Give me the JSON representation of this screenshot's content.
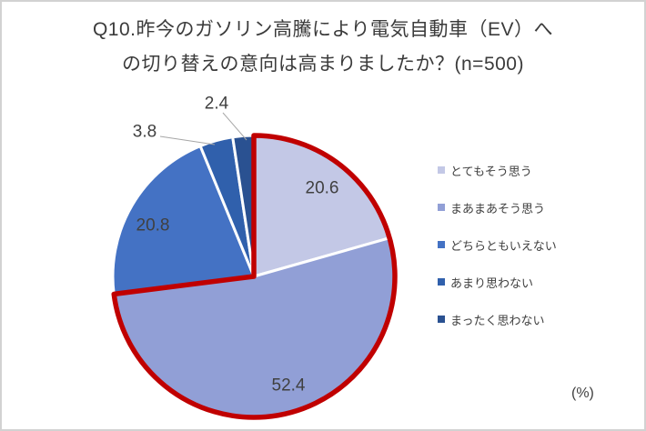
{
  "title": {
    "line1": "Q10.昨今のガソリン高騰により電気自動車（EV）へ",
    "line2": "の切り替えの意向は高まりましたか？(n=500)"
  },
  "unit_label": "(%)",
  "chart_data": {
    "type": "pie",
    "title": "Q10.昨今のガソリン高騰により電気自動車（EV）への切り替えの意向は高まりましたか？(n=500)",
    "categories": [
      "とてもそう思う",
      "まあまあそう思う",
      "どちらともいえない",
      "あまり思わない",
      "まったく思わない"
    ],
    "values": [
      20.6,
      52.4,
      20.8,
      3.8,
      2.4
    ],
    "colors": [
      "#c3c8e6",
      "#919fd6",
      "#4472c4",
      "#3060ac",
      "#2a5191"
    ],
    "start_angle_deg": 0,
    "direction": "clockwise",
    "legend_position": "right",
    "data_label_color": "#404040",
    "slice_border_color": "#ffffff",
    "leader_line_color": "#a6a6a6",
    "highlight": {
      "segments": [
        0,
        1
      ],
      "outline_color": "#c00000"
    }
  }
}
